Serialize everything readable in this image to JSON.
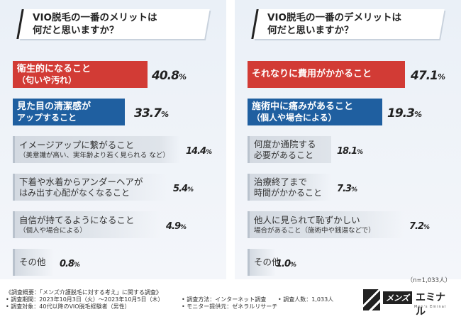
{
  "chart_data": [
    {
      "type": "bar",
      "title": "VIO脱毛の一番のメリットは\n何だと思いますか？",
      "categories": [
        "衛生的になること（匂いや汚れ）",
        "見た目の清潔感がアップすること",
        "イメージアップに繋がること（美意識が高い、実年齢より若く見られる など）",
        "下着や水着からアンダーヘアがはみ出す心配がなくなること",
        "自信が持てるようになること（個人や場合による）",
        "その他"
      ],
      "values": [
        40.8,
        33.7,
        14.4,
        5.4,
        4.9,
        0.8
      ],
      "items": [
        {
          "main": "衛生的になること",
          "sub": "（匂いや汚れ）",
          "pct": "40.8",
          "unit": "%"
        },
        {
          "main": "見た目の清潔感が",
          "sub": "アップすること",
          "pct": "33.7",
          "unit": "%"
        },
        {
          "main": "イメージアップに繋がること",
          "sub": "（美意識が高い、実年齢より若く見られる など）",
          "pct": "14.4",
          "unit": "%"
        },
        {
          "main": "下着や水着からアンダーヘアが",
          "sub": "はみ出す心配がなくなること",
          "pct": "5.4",
          "unit": "%"
        },
        {
          "main": "自信が持てるようになること",
          "sub": "（個人や場合による）",
          "pct": "4.9",
          "unit": "%"
        },
        {
          "main": "その他",
          "sub": "",
          "pct": "0.8",
          "unit": "%"
        }
      ]
    },
    {
      "type": "bar",
      "title": "VIO脱毛の一番のデメリットは\n何だと思いますか？",
      "categories": [
        "それなりに費用がかかること",
        "施術中に痛みがあること（個人や場合による）",
        "何度か通院する必要があること",
        "治療終了まで時間がかかること",
        "他人に見られて恥ずかしい場合があること（施術中や銭湯などで）",
        "その他"
      ],
      "values": [
        47.1,
        19.3,
        18.1,
        7.3,
        7.2,
        1.0
      ],
      "items": [
        {
          "main": "それなりに費用がかかること",
          "sub": "",
          "pct": "47.1",
          "unit": "%"
        },
        {
          "main": "施術中に痛みがあること",
          "sub": "（個人や場合による）",
          "pct": "19.3",
          "unit": "%"
        },
        {
          "main": "何度か通院する",
          "sub": "必要があること",
          "pct": "18.1",
          "unit": "%"
        },
        {
          "main": "治療終了まで",
          "sub": "時間がかかること",
          "pct": "7.3",
          "unit": "%"
        },
        {
          "main": "他人に見られて恥ずかしい",
          "sub": "場合があること（施術中や銭湯などで）",
          "pct": "7.2",
          "unit": "%"
        },
        {
          "main": "その他",
          "sub": "",
          "pct": "1.0",
          "unit": "%"
        }
      ]
    }
  ],
  "sample_note": "（n=1,033人）",
  "footer": {
    "line1": "《調査概要：「メンズ介護脱毛に対する考え」に関する調査》",
    "line2": "• 調査期間：2023年10月3日（火）～2023年10月5日（木）",
    "line3": "• 調査対象：40代以降のVIO脱毛経験者（男性）",
    "method": "• 調査方法：インターネット調査",
    "provider": "• モニター提供元：ゼネラルリサーチ",
    "count": "• 調査人数：1,033人"
  },
  "logo": {
    "tag": "メンズ",
    "name": "エミナル",
    "sub": "Men's Eminal"
  },
  "colors": {
    "first": "#d23b35",
    "second": "#1f5fa0",
    "rest_bg": "#dde2e8"
  }
}
